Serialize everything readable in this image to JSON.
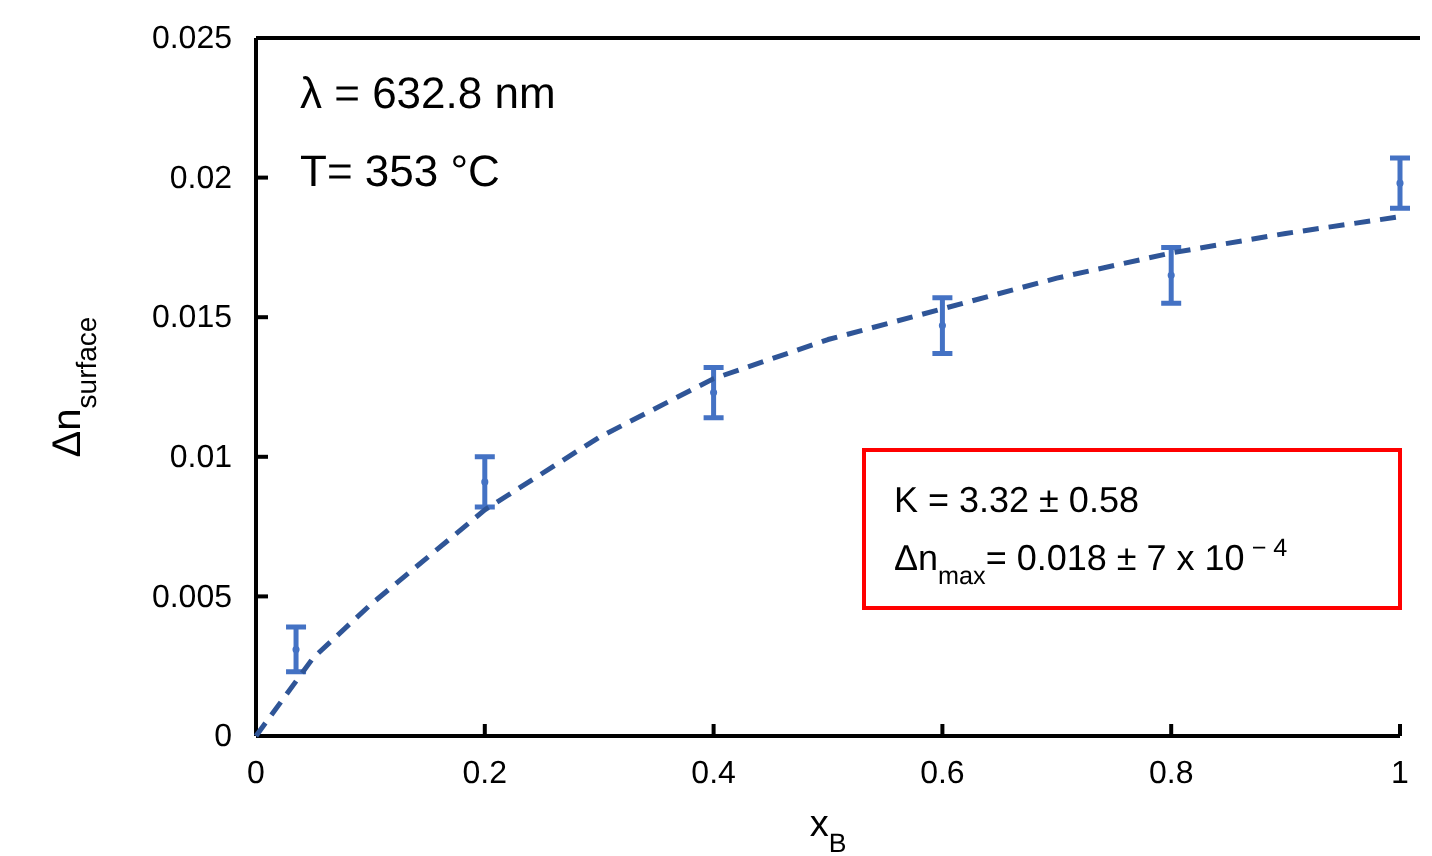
{
  "chart_data": {
    "type": "scatter",
    "xlabel": "x$_{B}$",
    "ylabel": "Δn$_{surface}$",
    "xlim": [
      0,
      1
    ],
    "xticks": [
      0,
      0.2,
      0.4,
      0.6,
      0.8,
      1
    ],
    "ylim": [
      0,
      0.025
    ],
    "yticks": [
      0,
      0.005,
      0.01,
      0.015,
      0.02,
      0.025
    ],
    "grid": false,
    "series": [
      {
        "color": "#4472c4",
        "marker": "circle",
        "x": [
          0.035,
          0.2,
          0.4,
          0.6,
          0.8,
          1
        ],
        "values": [
          0.0031,
          0.0091,
          0.0123,
          0.0147,
          0.0165,
          0.0198
        ],
        "errors": [
          0.0008,
          0.0009,
          0.0009,
          0.001,
          0.001,
          0.0009
        ]
      },
      {
        "type": "line",
        "color": "#2f5597",
        "line_style": "dashed",
        "x": [
          0,
          0.05,
          0.1,
          0.2,
          0.3,
          0.4,
          0.5,
          0.6,
          0.7,
          0.8,
          0.9,
          1
        ],
        "values": [
          0,
          0.0028,
          0.0047,
          0.0081,
          0.0107,
          0.0128,
          0.0142,
          0.0153,
          0.0164,
          0.0173,
          0.018,
          0.0186
        ]
      }
    ],
    "annotations": [
      "λ = 632.8 nm",
      "T= 353 °C",
      "K = 3.32 ± 0.58",
      "Δn$_{max}$= 0.018 ± 7 x 10$^{ − 4}$"
    ]
  }
}
